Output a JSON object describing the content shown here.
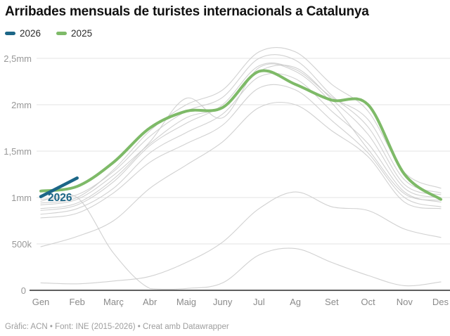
{
  "title": "Arribades mensuals de turistes internacionals a Catalunya",
  "legend": [
    {
      "label": "2026",
      "color": "#1c6687"
    },
    {
      "label": "2025",
      "color": "#7eba68"
    }
  ],
  "annotation": {
    "label": "2026"
  },
  "footer": "Gràfic: ACN • Font: INE (2015-2026) • Creat amb Datawrapper",
  "colors": {
    "accent_2026": "#1c6687",
    "accent_2025": "#7eba68",
    "other_years": "#c9c9c9",
    "gridline": "#e3e3e3",
    "baseline": "#4a4a4a"
  },
  "chart_data": {
    "type": "line",
    "title": "Arribades mensuals de turistes internacionals a Catalunya",
    "unit": "tourists per month (mm = millions, k = thousands)",
    "x": [
      "Gen",
      "Feb",
      "Març",
      "Abr",
      "Maig",
      "Juny",
      "Jul",
      "Ag",
      "Set",
      "Oct",
      "Nov",
      "Des"
    ],
    "ylim": [
      0,
      2.7
    ],
    "grid": true,
    "legend_position": "top-left",
    "yticks": [
      {
        "value": 0,
        "label": "0"
      },
      {
        "value": 0.5,
        "label": "500k"
      },
      {
        "value": 1,
        "label": "1mm"
      },
      {
        "value": 1.5,
        "label": "1,5mm"
      },
      {
        "value": 2,
        "label": "2mm"
      },
      {
        "value": 2.5,
        "label": "2,5mm"
      }
    ],
    "series": [
      {
        "name": "2015",
        "role": "context",
        "color": "#c9c9c9",
        "width": 1.1,
        "values": [
          0.78,
          0.83,
          1.05,
          1.38,
          1.58,
          1.78,
          2.18,
          2.16,
          1.83,
          1.48,
          1.0,
          0.9
        ]
      },
      {
        "name": "2016",
        "role": "context",
        "color": "#c9c9c9",
        "width": 1.1,
        "values": [
          0.82,
          0.88,
          1.1,
          1.48,
          1.7,
          1.9,
          2.3,
          2.28,
          1.93,
          1.58,
          1.06,
          0.95
        ]
      },
      {
        "name": "2017",
        "role": "context",
        "color": "#c9c9c9",
        "width": 1.1,
        "values": [
          0.88,
          0.94,
          1.2,
          1.6,
          2.07,
          1.86,
          2.4,
          2.36,
          2.02,
          1.52,
          1.04,
          0.97
        ]
      },
      {
        "name": "2018",
        "role": "context",
        "color": "#c9c9c9",
        "width": 1.1,
        "values": [
          0.92,
          0.98,
          1.24,
          1.58,
          1.86,
          1.98,
          2.36,
          2.4,
          2.06,
          1.68,
          1.1,
          1.0
        ]
      },
      {
        "name": "2019",
        "role": "context",
        "color": "#c9c9c9",
        "width": 1.1,
        "values": [
          0.98,
          1.03,
          1.28,
          1.66,
          1.93,
          2.08,
          2.5,
          2.48,
          2.1,
          1.76,
          1.14,
          1.03
        ]
      },
      {
        "name": "2020",
        "role": "context",
        "color": "#c9c9c9",
        "width": 1.1,
        "values": [
          0.96,
          1.0,
          0.4,
          0.02,
          0.02,
          0.08,
          0.38,
          0.45,
          0.3,
          0.16,
          0.05,
          0.09
        ]
      },
      {
        "name": "2021",
        "role": "context",
        "color": "#c9c9c9",
        "width": 1.1,
        "values": [
          0.08,
          0.07,
          0.1,
          0.15,
          0.3,
          0.52,
          0.88,
          1.06,
          0.9,
          0.86,
          0.66,
          0.57
        ]
      },
      {
        "name": "2022",
        "role": "context",
        "color": "#c9c9c9",
        "width": 1.1,
        "values": [
          0.47,
          0.58,
          0.75,
          1.1,
          1.35,
          1.6,
          1.97,
          2.0,
          1.72,
          1.44,
          0.95,
          0.88
        ]
      },
      {
        "name": "2023",
        "role": "context",
        "color": "#c9c9c9",
        "width": 1.1,
        "values": [
          0.86,
          0.92,
          1.17,
          1.56,
          1.8,
          2.0,
          2.42,
          2.38,
          2.08,
          1.84,
          1.19,
          1.05
        ]
      },
      {
        "name": "2024",
        "role": "context",
        "color": "#c9c9c9",
        "width": 1.1,
        "values": [
          0.94,
          1.0,
          1.3,
          1.72,
          2.0,
          2.16,
          2.57,
          2.57,
          2.22,
          1.93,
          1.27,
          1.1
        ]
      },
      {
        "name": "2025",
        "role": "highlight",
        "color": "#7eba68",
        "width": 4,
        "values": [
          1.07,
          1.12,
          1.38,
          1.75,
          1.93,
          1.97,
          2.36,
          2.22,
          2.05,
          2.0,
          1.25,
          0.98
        ]
      },
      {
        "name": "2026",
        "role": "highlight",
        "color": "#1c6687",
        "width": 4.5,
        "values": [
          1.01,
          1.21
        ]
      }
    ]
  }
}
